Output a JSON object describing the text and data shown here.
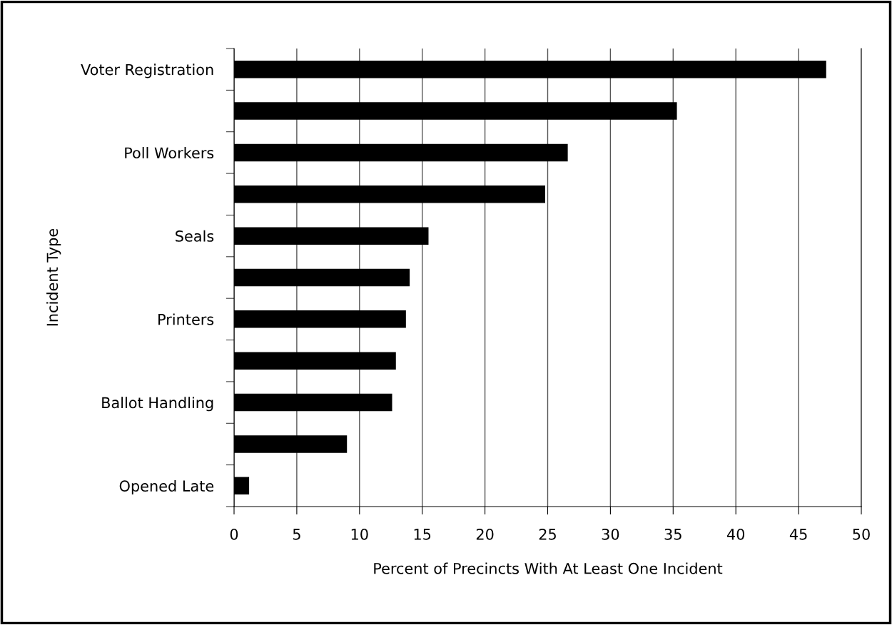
{
  "chart_data": {
    "type": "bar",
    "orientation": "horizontal",
    "categories": [
      "Voter Registration",
      null,
      "Poll Workers",
      null,
      "Seals",
      null,
      "Printers",
      null,
      "Ballot Handling",
      null,
      "Opened Late"
    ],
    "values": [
      47.2,
      35.3,
      26.6,
      24.8,
      15.5,
      14.0,
      13.7,
      12.9,
      12.6,
      9.0,
      1.2
    ],
    "color": "#000000",
    "xlabel": "Percent of Precincts With At Least One Incident",
    "ylabel": "Incident Type",
    "xlim": [
      0,
      50
    ],
    "xticks": [
      0,
      5,
      10,
      15,
      20,
      25,
      30,
      35,
      40,
      45,
      50
    ],
    "grid": "x"
  }
}
